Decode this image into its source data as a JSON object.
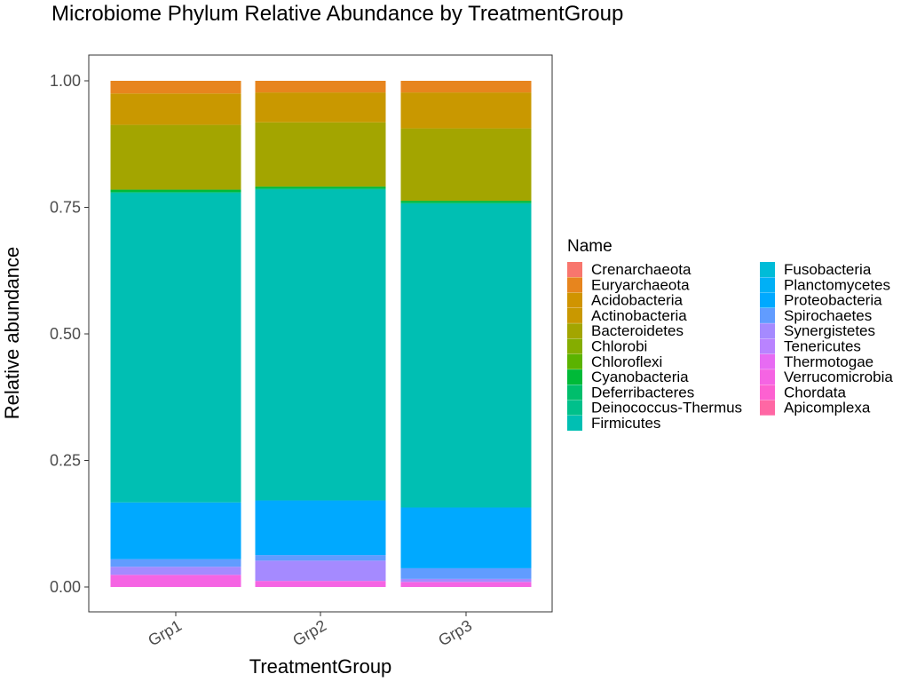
{
  "chart_data": {
    "type": "bar",
    "stacked": true,
    "title": "Microbiome Phylum Relative Abundance by TreatmentGroup",
    "xlabel": "TreatmentGroup",
    "ylabel": "Relative abundance",
    "categories": [
      "Grp1",
      "Grp2",
      "Grp3"
    ],
    "ylim": [
      0,
      1
    ],
    "yticks": [
      0,
      0.25,
      0.5,
      0.75,
      1.0
    ],
    "ytick_labels": [
      "0.00",
      "0.25",
      "0.50",
      "0.75",
      "1.00"
    ],
    "grid": false,
    "legend": {
      "title": "Name",
      "position": "right",
      "columns": 2
    },
    "series": [
      {
        "name": "Crenarchaeota",
        "color": "#F8766D",
        "values": [
          0.0,
          0.0,
          0.0
        ]
      },
      {
        "name": "Euryarchaeota",
        "color": "#E7851E",
        "values": [
          0.025,
          0.023,
          0.023
        ]
      },
      {
        "name": "Acidobacteria",
        "color": "#D09400",
        "values": [
          0.0,
          0.0,
          0.0
        ]
      },
      {
        "name": "Actinobacteria",
        "color": "#C99800",
        "values": [
          0.062,
          0.059,
          0.071
        ]
      },
      {
        "name": "Bacteroidetes",
        "color": "#A3A500",
        "values": [
          0.128,
          0.127,
          0.143
        ]
      },
      {
        "name": "Chlorobi",
        "color": "#85AD00",
        "values": [
          0.0,
          0.0,
          0.0
        ]
      },
      {
        "name": "Chloroflexi",
        "color": "#5BB300",
        "values": [
          0.0,
          0.0,
          0.0
        ]
      },
      {
        "name": "Cyanobacteria",
        "color": "#00BA38",
        "values": [
          0.005,
          0.004,
          0.004
        ]
      },
      {
        "name": "Deferribacteres",
        "color": "#00BE6C",
        "values": [
          0.0,
          0.0,
          0.0
        ]
      },
      {
        "name": "Deinococcus-Thermus",
        "color": "#00C08B",
        "values": [
          0.002,
          0.002,
          0.002
        ]
      },
      {
        "name": "Firmicutes",
        "color": "#00BFB3",
        "values": [
          0.611,
          0.614,
          0.6
        ]
      },
      {
        "name": "Fusobacteria",
        "color": "#00BCD8",
        "values": [
          0.0,
          0.0,
          0.0
        ]
      },
      {
        "name": "Planctomycetes",
        "color": "#00B0F6",
        "values": [
          0.0,
          0.0,
          0.0
        ]
      },
      {
        "name": "Proteobacteria",
        "color": "#00A9FF",
        "values": [
          0.112,
          0.108,
          0.12
        ]
      },
      {
        "name": "Spirochaetes",
        "color": "#619CFF",
        "values": [
          0.015,
          0.011,
          0.021
        ]
      },
      {
        "name": "Synergistetes",
        "color": "#A58AFF",
        "values": [
          0.016,
          0.04,
          0.006
        ]
      },
      {
        "name": "Tenericutes",
        "color": "#B983FF",
        "values": [
          0.0,
          0.0,
          0.0
        ]
      },
      {
        "name": "Thermotogae",
        "color": "#E76BF3",
        "values": [
          0.0,
          0.0,
          0.0
        ]
      },
      {
        "name": "Verrucomicrobia",
        "color": "#F564E3",
        "values": [
          0.024,
          0.012,
          0.01
        ]
      },
      {
        "name": "Chordata",
        "color": "#FD61D1",
        "values": [
          0.0,
          0.0,
          0.0
        ]
      },
      {
        "name": "Apicomplexa",
        "color": "#FF67A4",
        "values": [
          0.0,
          0.0,
          0.0
        ]
      }
    ]
  }
}
